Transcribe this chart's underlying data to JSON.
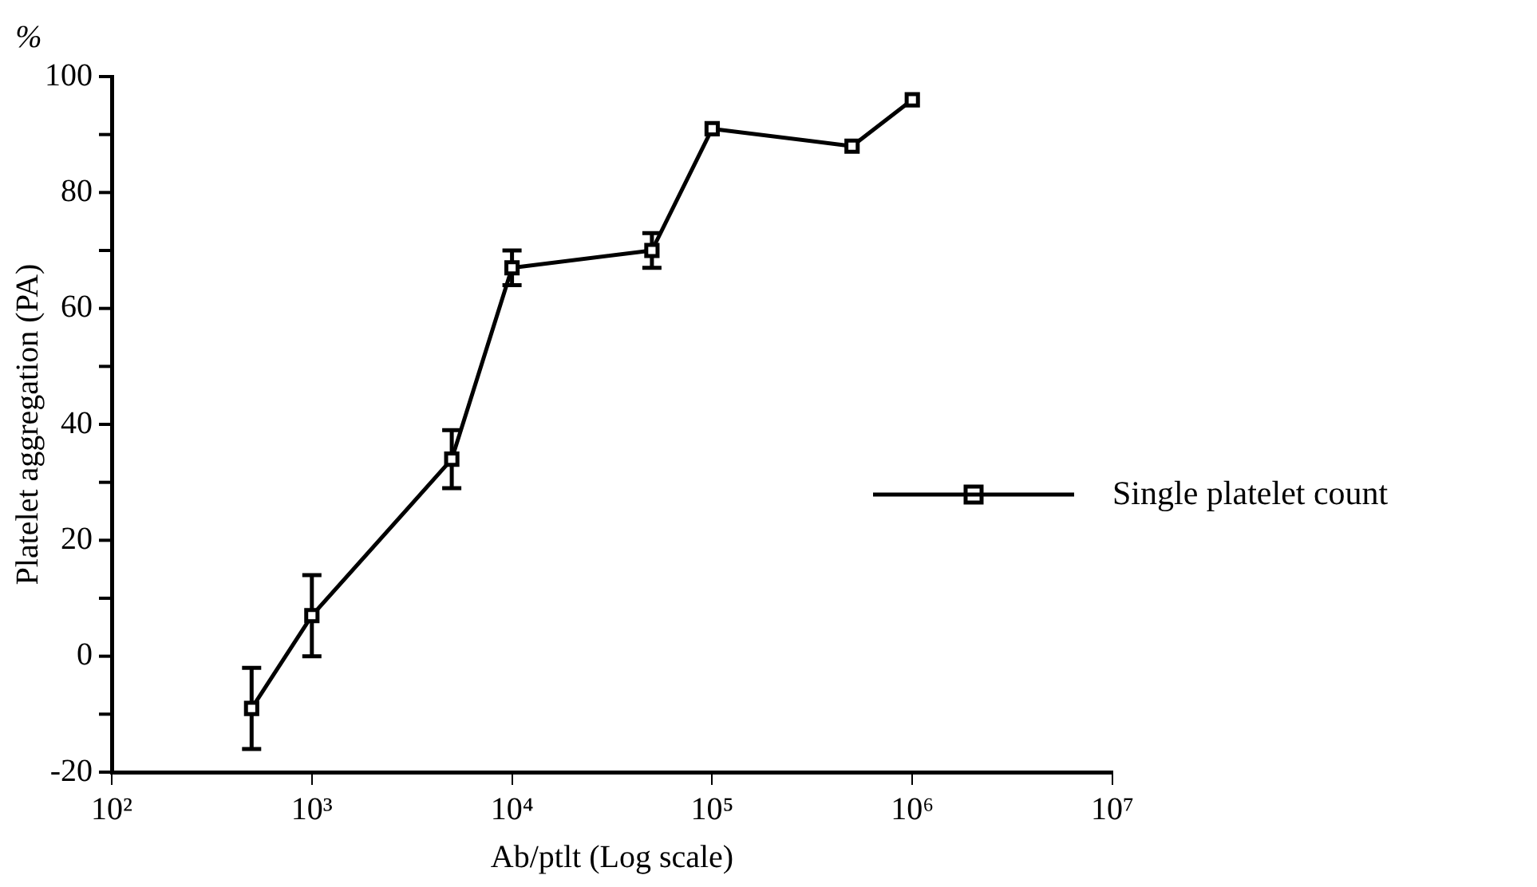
{
  "chart_data": {
    "type": "line",
    "xlabel": "Ab/ptlt (Log scale)",
    "ylabel": "Platelet aggregation (PA)",
    "annotations": [
      "%"
    ],
    "log": "x",
    "grid": false,
    "legend": "right",
    "marker": "square",
    "line_style": "solid",
    "x": [
      500,
      1000,
      5000,
      10000,
      50000,
      100000,
      500000,
      1000000
    ],
    "series": [
      {
        "name": "Single platelet count",
        "color": "#000000",
        "values": [
          -9,
          7,
          34,
          67,
          70,
          91,
          88,
          96
        ],
        "errors": [
          7,
          7,
          5,
          3,
          3,
          null,
          null,
          null
        ]
      }
    ],
    "xlim": [
      100,
      10000000
    ],
    "xticks": [
      {
        "value": 100,
        "label": "10²"
      },
      {
        "value": 1000,
        "label": "10³"
      },
      {
        "value": 10000,
        "label": "10⁴"
      },
      {
        "value": 100000,
        "label": "10⁵"
      },
      {
        "value": 1000000,
        "label": "10⁶"
      },
      {
        "value": 10000000,
        "label": "10⁷"
      }
    ],
    "ylim": [
      -20,
      100
    ],
    "yticks": [
      -20,
      {
        "value": -10,
        "label": null
      },
      0,
      {
        "value": 10,
        "label": null
      },
      20,
      {
        "value": 30,
        "label": null
      },
      40,
      {
        "value": 50,
        "label": null
      },
      60,
      {
        "value": 70,
        "label": null
      },
      80,
      {
        "value": 90,
        "label": null
      },
      100
    ]
  }
}
